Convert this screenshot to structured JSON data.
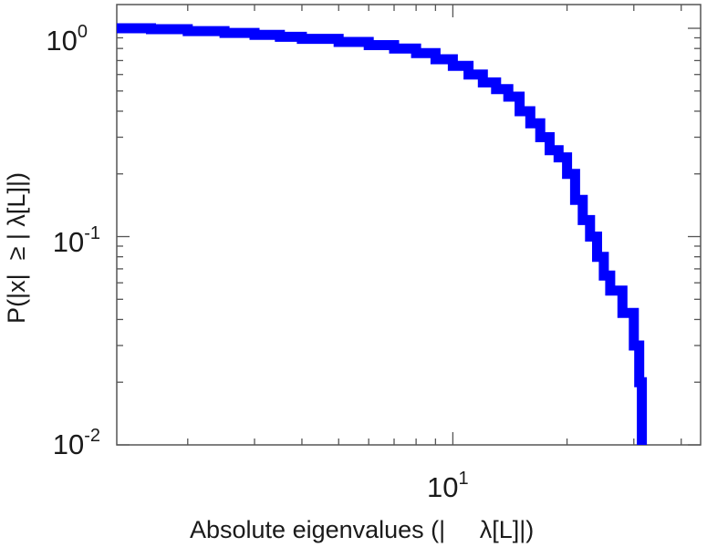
{
  "chart_data": {
    "type": "line",
    "subtype": "ccdf-step",
    "xscale": "log",
    "yscale": "log",
    "xlim": [
      1.3,
      45
    ],
    "ylim": [
      0.01,
      1.3
    ],
    "xlabel": "Absolute eigenvalues (|     λ[L]|)",
    "ylabel": "P(|x|  ≥ | λ[L]|)",
    "x_ticks": [
      {
        "value": 10,
        "base": "10",
        "exp": "1"
      }
    ],
    "y_ticks": [
      {
        "value": 1,
        "base": "10",
        "exp": "0"
      },
      {
        "value": 0.1,
        "base": "10",
        "exp": "-1"
      },
      {
        "value": 0.01,
        "base": "10",
        "exp": "-2"
      }
    ],
    "grid": false,
    "series": [
      {
        "color": "#0000ff",
        "x": [
          1.3,
          1.6,
          2.0,
          2.5,
          3.0,
          3.5,
          4.0,
          5.0,
          6.0,
          7.0,
          8.0,
          9.0,
          10.0,
          11.0,
          12.0,
          13.0,
          14.0,
          15.0,
          16.0,
          17.0,
          18.0,
          19.0,
          20.0,
          21.0,
          22.0,
          23.0,
          24.0,
          25.0,
          26.0,
          28.0,
          30.0,
          31.0,
          31.5
        ],
        "y": [
          1.0,
          0.99,
          0.97,
          0.95,
          0.93,
          0.91,
          0.89,
          0.86,
          0.83,
          0.8,
          0.76,
          0.71,
          0.66,
          0.6,
          0.55,
          0.51,
          0.47,
          0.4,
          0.35,
          0.3,
          0.26,
          0.24,
          0.2,
          0.15,
          0.12,
          0.1,
          0.08,
          0.065,
          0.055,
          0.043,
          0.03,
          0.02,
          0.01
        ]
      }
    ]
  }
}
